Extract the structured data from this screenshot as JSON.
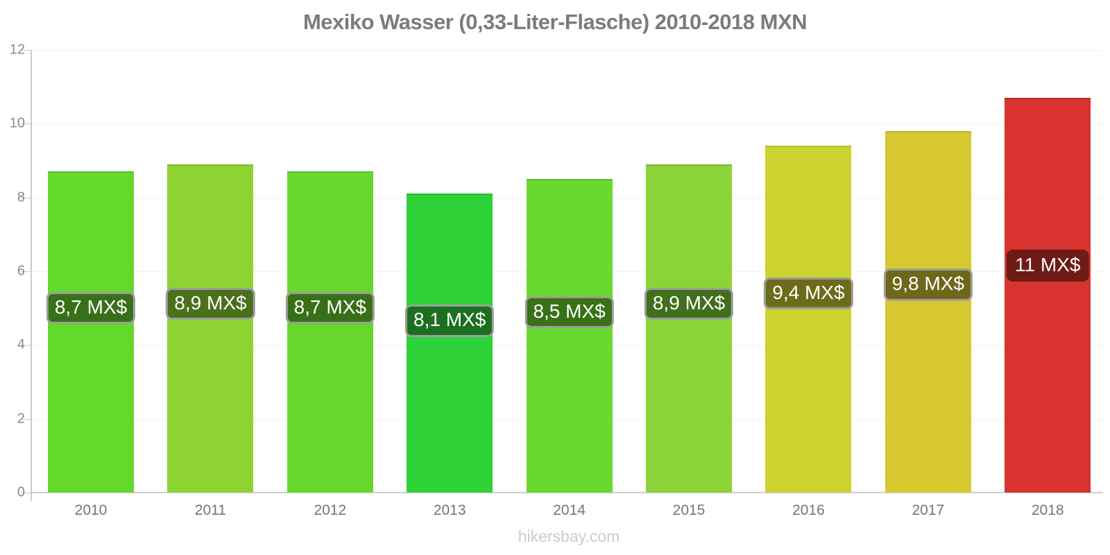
{
  "title": "Mexiko Wasser (0,33-Liter-Flasche) 2010-2018 MXN",
  "footer": {
    "text": "hikersbay.com"
  },
  "colors": {
    "title_text": "#7b7b7b",
    "axis": "#c9cdc4",
    "baseline": "#cfcfcf",
    "gridline": "#f3f3f3",
    "y_tick_text": "#8a8a8a",
    "x_tick_text": "#757575",
    "footer_text": "#cbcbcb",
    "bar_label_text": "#ffffff",
    "bar_label_border": "#9e9e9e"
  },
  "chart_data": {
    "type": "bar",
    "title": "Mexiko Wasser (0,33-Liter-Flasche) 2010-2018 MXN",
    "xlabel": "",
    "ylabel": "",
    "currency": "MXN",
    "ylim": [
      0,
      12
    ],
    "yticks": [
      0,
      2,
      4,
      6,
      8,
      10,
      12
    ],
    "grid": true,
    "legend": "none",
    "categories": [
      "2010",
      "2011",
      "2012",
      "2013",
      "2014",
      "2015",
      "2016",
      "2017",
      "2018"
    ],
    "values": [
      8.7,
      8.9,
      8.7,
      8.1,
      8.5,
      8.9,
      9.4,
      9.8,
      10.7
    ],
    "value_labels": [
      "8,7 MX$",
      "8,9 MX$",
      "8,7 MX$",
      "8,1 MX$",
      "8,5 MX$",
      "8,9 MX$",
      "9,4 MX$",
      "9,8 MX$",
      "11 MX$"
    ],
    "bar_colors": [
      "#65d82c",
      "#8dd433",
      "#67d72d",
      "#2fd239",
      "#6ad92f",
      "#8cd337",
      "#ccd32e",
      "#d8c82f",
      "#d8332e"
    ],
    "label_bg_colors": [
      "#38701a",
      "#4a701b",
      "#387018",
      "#1c6f1f",
      "#387117",
      "#416f1c",
      "#6b6b1a",
      "#6f6719",
      "#6e1b16"
    ],
    "label_border_colors": [
      "#9e9e9e",
      "#9e9e9e",
      "#9e9e9e",
      "#9e9e9e",
      "#9e9e9e",
      "#9e9e9e",
      "#9e9e9e",
      "#9e9e9e",
      "#6e1b16"
    ]
  }
}
